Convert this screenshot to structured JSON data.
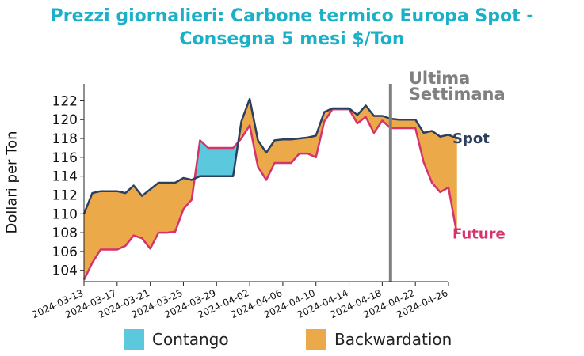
{
  "title_line1": "Prezzi giornalieri: Carbone termico Europa Spot -",
  "title_line2": "Consegna 5 mesi $/Ton",
  "chart_data": {
    "type": "area",
    "title": "Prezzi giornalieri: Carbone termico Europa Spot - Consegna 5 mesi $/Ton",
    "ylabel": "Dollari per Ton",
    "xlabel": "",
    "ylim": [
      102.8,
      123.8
    ],
    "xlim": [
      "2024-03-13",
      "2024-04-26"
    ],
    "yticks": [
      104,
      106,
      108,
      110,
      112,
      114,
      116,
      118,
      120,
      122
    ],
    "xticks": [
      "2024-03-13",
      "2024-03-17",
      "2024-03-21",
      "2024-03-25",
      "2024-03-29",
      "2024-04-02",
      "2024-04-06",
      "2024-04-10",
      "2024-04-14",
      "2024-04-18",
      "2024-04-22",
      "2024-04-26"
    ],
    "series": [
      {
        "name": "Spot",
        "color": "#2b3f5e",
        "points": [
          [
            "2024-03-13",
            110.0
          ],
          [
            "2024-03-14",
            112.2
          ],
          [
            "2024-03-15",
            112.4
          ],
          [
            "2024-03-16",
            112.4
          ],
          [
            "2024-03-17",
            112.4
          ],
          [
            "2024-03-18",
            112.2
          ],
          [
            "2024-03-19",
            113.0
          ],
          [
            "2024-03-20",
            111.9
          ],
          [
            "2024-03-21",
            112.6
          ],
          [
            "2024-03-22",
            113.3
          ],
          [
            "2024-03-23",
            113.3
          ],
          [
            "2024-03-24",
            113.3
          ],
          [
            "2024-03-25",
            113.8
          ],
          [
            "2024-03-26",
            113.6
          ],
          [
            "2024-03-27",
            114.0
          ],
          [
            "2024-03-28",
            114.0
          ],
          [
            "2024-03-29",
            114.0
          ],
          [
            "2024-03-30",
            114.0
          ],
          [
            "2024-03-31",
            114.0
          ],
          [
            "2024-04-01",
            119.8
          ],
          [
            "2024-04-02",
            122.2
          ],
          [
            "2024-04-03",
            117.8
          ],
          [
            "2024-04-04",
            116.5
          ],
          [
            "2024-04-05",
            117.8
          ],
          [
            "2024-04-06",
            117.9
          ],
          [
            "2024-04-07",
            117.9
          ],
          [
            "2024-04-08",
            118.0
          ],
          [
            "2024-04-09",
            118.1
          ],
          [
            "2024-04-10",
            118.3
          ],
          [
            "2024-04-11",
            120.8
          ],
          [
            "2024-04-12",
            121.2
          ],
          [
            "2024-04-13",
            121.2
          ],
          [
            "2024-04-14",
            121.2
          ],
          [
            "2024-04-15",
            120.5
          ],
          [
            "2024-04-16",
            121.5
          ],
          [
            "2024-04-17",
            120.4
          ],
          [
            "2024-04-18",
            120.4
          ],
          [
            "2024-04-19",
            120.1
          ],
          [
            "2024-04-20",
            120.0
          ],
          [
            "2024-04-21",
            120.0
          ],
          [
            "2024-04-22",
            120.0
          ],
          [
            "2024-04-23",
            118.6
          ],
          [
            "2024-04-24",
            118.8
          ],
          [
            "2024-04-25",
            118.2
          ],
          [
            "2024-04-26",
            118.4
          ],
          [
            "2024-04-27",
            118.0
          ]
        ]
      },
      {
        "name": "Future",
        "color": "#d6336c",
        "points": [
          [
            "2024-03-13",
            103.0
          ],
          [
            "2024-03-14",
            104.8
          ],
          [
            "2024-03-15",
            106.2
          ],
          [
            "2024-03-16",
            106.2
          ],
          [
            "2024-03-17",
            106.2
          ],
          [
            "2024-03-18",
            106.6
          ],
          [
            "2024-03-19",
            107.7
          ],
          [
            "2024-03-20",
            107.4
          ],
          [
            "2024-03-21",
            106.3
          ],
          [
            "2024-03-22",
            108.0
          ],
          [
            "2024-03-23",
            108.0
          ],
          [
            "2024-03-24",
            108.1
          ],
          [
            "2024-03-25",
            110.5
          ],
          [
            "2024-03-26",
            111.5
          ],
          [
            "2024-03-27",
            117.8
          ],
          [
            "2024-03-28",
            117.0
          ],
          [
            "2024-03-29",
            117.0
          ],
          [
            "2024-03-30",
            117.0
          ],
          [
            "2024-03-31",
            117.0
          ],
          [
            "2024-04-01",
            118.0
          ],
          [
            "2024-04-02",
            119.4
          ],
          [
            "2024-04-03",
            115.0
          ],
          [
            "2024-04-04",
            113.6
          ],
          [
            "2024-04-05",
            115.4
          ],
          [
            "2024-04-06",
            115.4
          ],
          [
            "2024-04-07",
            115.4
          ],
          [
            "2024-04-08",
            116.4
          ],
          [
            "2024-04-09",
            116.4
          ],
          [
            "2024-04-10",
            116.0
          ],
          [
            "2024-04-11",
            119.8
          ],
          [
            "2024-04-12",
            121.1
          ],
          [
            "2024-04-13",
            121.1
          ],
          [
            "2024-04-14",
            121.1
          ],
          [
            "2024-04-15",
            119.6
          ],
          [
            "2024-04-16",
            120.3
          ],
          [
            "2024-04-17",
            118.6
          ],
          [
            "2024-04-18",
            119.9
          ],
          [
            "2024-04-19",
            119.1
          ],
          [
            "2024-04-20",
            119.1
          ],
          [
            "2024-04-21",
            119.1
          ],
          [
            "2024-04-22",
            119.1
          ],
          [
            "2024-04-23",
            115.5
          ],
          [
            "2024-04-24",
            113.3
          ],
          [
            "2024-04-25",
            112.3
          ],
          [
            "2024-04-26",
            112.8
          ],
          [
            "2024-04-27",
            107.9
          ]
        ]
      }
    ],
    "marker": {
      "date": "2024-04-19",
      "label_line1": "Ultima",
      "label_line2": "Settimana",
      "color": "#808080"
    },
    "fill_colors": {
      "contango": "#5bc8dd",
      "backwardation": "#eba94a"
    },
    "legend": [
      {
        "label": "Contango",
        "color": "#5bc8dd"
      },
      {
        "label": "Backwardation",
        "color": "#eba94a"
      }
    ],
    "legend_position": "bottom",
    "grid": false
  }
}
